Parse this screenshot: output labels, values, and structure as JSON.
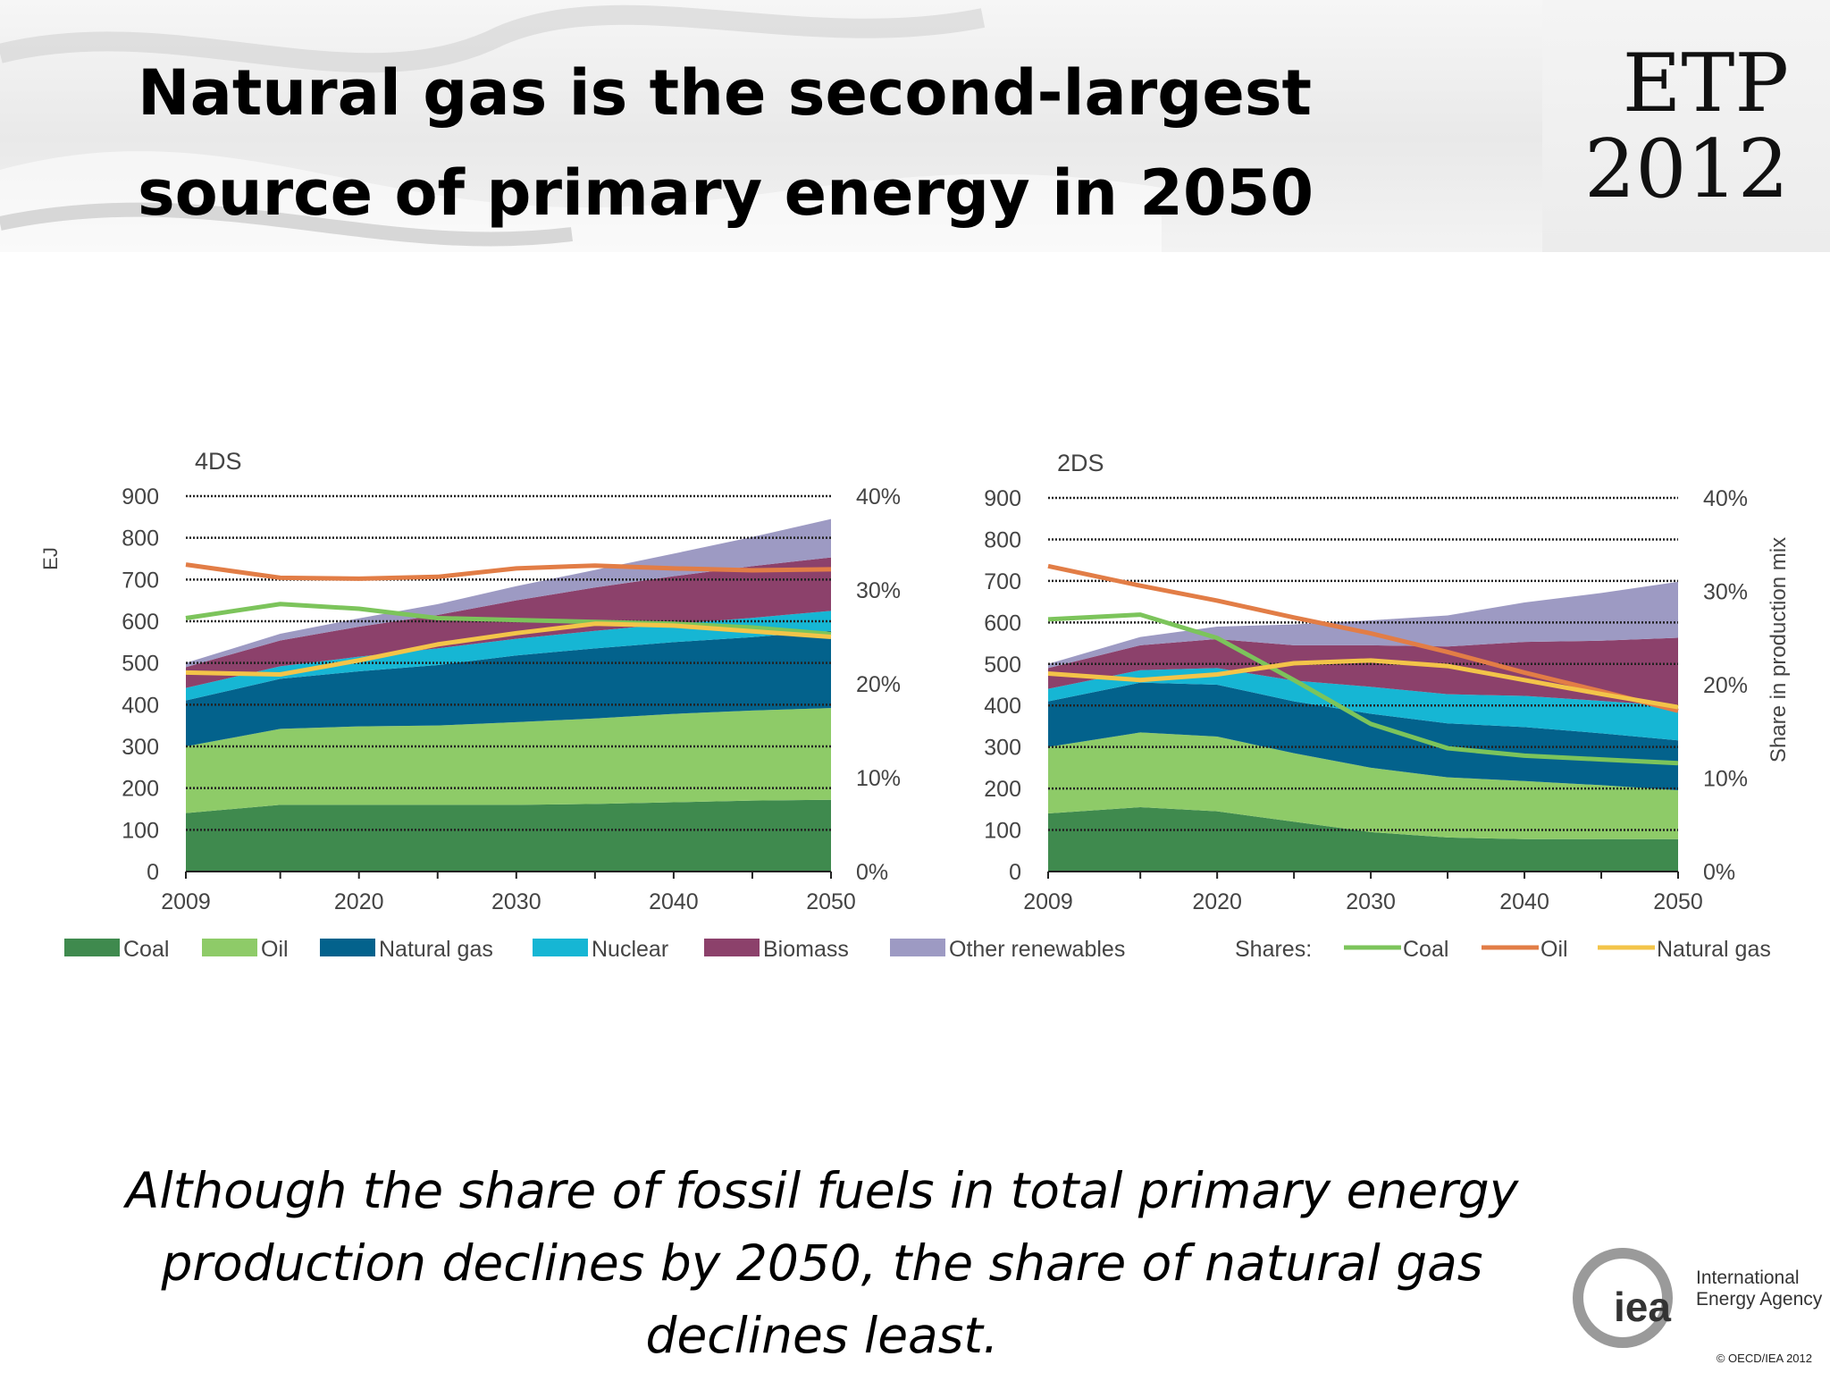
{
  "header": {
    "title": "Natural gas is the second-largest source of primary energy in 2050",
    "badge_top": "ETP",
    "badge_bottom": "2012"
  },
  "caption": "Although the share of fossil fuels in total primary energy production declines by 2050, the share of natural gas declines least.",
  "footer": {
    "logo_mark": "iea",
    "logo_line1": "International",
    "logo_line2": "Energy Agency",
    "copyright": "© OECD/IEA 2012"
  },
  "colors": {
    "coal": "#3f8a4e",
    "oil": "#8ecb68",
    "natural_gas": "#03628c",
    "nuclear": "#16b6d4",
    "biomass": "#8c416b",
    "other_renewables": "#9d9ac3",
    "share_coal": "#7cc45b",
    "share_oil": "#e27d46",
    "share_natural_gas": "#f3c449"
  },
  "legend": {
    "shares_label": "Shares:",
    "areas": [
      "Coal",
      "Oil",
      "Natural gas",
      "Nuclear",
      "Biomass",
      "Other renewables"
    ],
    "lines": [
      "Coal",
      "Oil",
      "Natural gas"
    ]
  },
  "chart_data": [
    {
      "type": "area",
      "title": "4DS",
      "ylabel": "EJ",
      "y2label": "",
      "x": [
        2009,
        2015,
        2020,
        2025,
        2030,
        2035,
        2040,
        2045,
        2050
      ],
      "xticks": [
        2009,
        2020,
        2030,
        2040,
        2050
      ],
      "ylim": [
        0,
        900
      ],
      "yticks": [
        0,
        100,
        200,
        300,
        400,
        500,
        600,
        700,
        800,
        900
      ],
      "y2lim": [
        0,
        40
      ],
      "y2ticks": [
        "0%",
        "10%",
        "20%",
        "30%",
        "40%"
      ],
      "grid": "dotted",
      "series": [
        {
          "name": "Coal",
          "values": [
            140,
            160,
            160,
            160,
            160,
            162,
            166,
            170,
            172
          ]
        },
        {
          "name": "Oil",
          "values": [
            160,
            182,
            188,
            190,
            198,
            205,
            212,
            216,
            220
          ]
        },
        {
          "name": "Natural gas",
          "values": [
            110,
            120,
            132,
            145,
            160,
            168,
            172,
            176,
            185
          ]
        },
        {
          "name": "Nuclear",
          "values": [
            30,
            30,
            35,
            40,
            40,
            42,
            44,
            46,
            48
          ]
        },
        {
          "name": "Biomass",
          "values": [
            50,
            62,
            72,
            80,
            92,
            104,
            114,
            124,
            128
          ]
        },
        {
          "name": "Other renewables",
          "values": [
            10,
            16,
            20,
            26,
            34,
            42,
            54,
            70,
            92
          ]
        }
      ],
      "shares": [
        {
          "name": "Coal",
          "values": [
            27.0,
            28.5,
            28.0,
            27.0,
            26.8,
            26.6,
            26.4,
            26.0,
            25.3
          ]
        },
        {
          "name": "Oil",
          "values": [
            32.7,
            31.3,
            31.2,
            31.4,
            32.3,
            32.6,
            32.3,
            32.1,
            32.2
          ]
        },
        {
          "name": "Natural gas",
          "values": [
            21.2,
            21.0,
            22.5,
            24.2,
            25.4,
            26.4,
            26.2,
            25.6,
            25.0
          ]
        }
      ]
    },
    {
      "type": "area",
      "title": "2DS",
      "ylabel": "",
      "y2label": "Share in production mix",
      "x": [
        2009,
        2015,
        2020,
        2025,
        2030,
        2035,
        2040,
        2045,
        2050
      ],
      "xticks": [
        2009,
        2020,
        2030,
        2040,
        2050
      ],
      "ylim": [
        0,
        900
      ],
      "yticks": [
        0,
        100,
        200,
        300,
        400,
        500,
        600,
        700,
        800,
        900
      ],
      "y2lim": [
        0,
        40
      ],
      "y2ticks": [
        "0%",
        "10%",
        "20%",
        "30%",
        "40%"
      ],
      "grid": "dotted",
      "series": [
        {
          "name": "Coal",
          "values": [
            140,
            155,
            145,
            120,
            95,
            82,
            78,
            78,
            78
          ]
        },
        {
          "name": "Oil",
          "values": [
            160,
            180,
            180,
            165,
            155,
            145,
            140,
            130,
            118
          ]
        },
        {
          "name": "Natural gas",
          "values": [
            110,
            120,
            125,
            125,
            130,
            130,
            130,
            125,
            120
          ]
        },
        {
          "name": "Nuclear",
          "values": [
            30,
            30,
            40,
            50,
            65,
            70,
            75,
            78,
            82
          ]
        },
        {
          "name": "Biomass",
          "values": [
            50,
            60,
            70,
            85,
            100,
            115,
            130,
            145,
            165
          ]
        },
        {
          "name": "Other renewables",
          "values": [
            10,
            20,
            30,
            50,
            60,
            75,
            95,
            115,
            135
          ]
        }
      ],
      "shares": [
        {
          "name": "Coal",
          "values": [
            27.0,
            27.5,
            25.0,
            20.5,
            15.8,
            13.2,
            12.4,
            12.0,
            11.6
          ]
        },
        {
          "name": "Oil",
          "values": [
            32.7,
            30.6,
            29.0,
            27.2,
            25.5,
            23.5,
            21.3,
            19.3,
            17.2
          ]
        },
        {
          "name": "Natural gas",
          "values": [
            21.2,
            20.5,
            21.1,
            22.3,
            22.6,
            22.0,
            20.5,
            19.0,
            17.6
          ]
        }
      ]
    }
  ]
}
